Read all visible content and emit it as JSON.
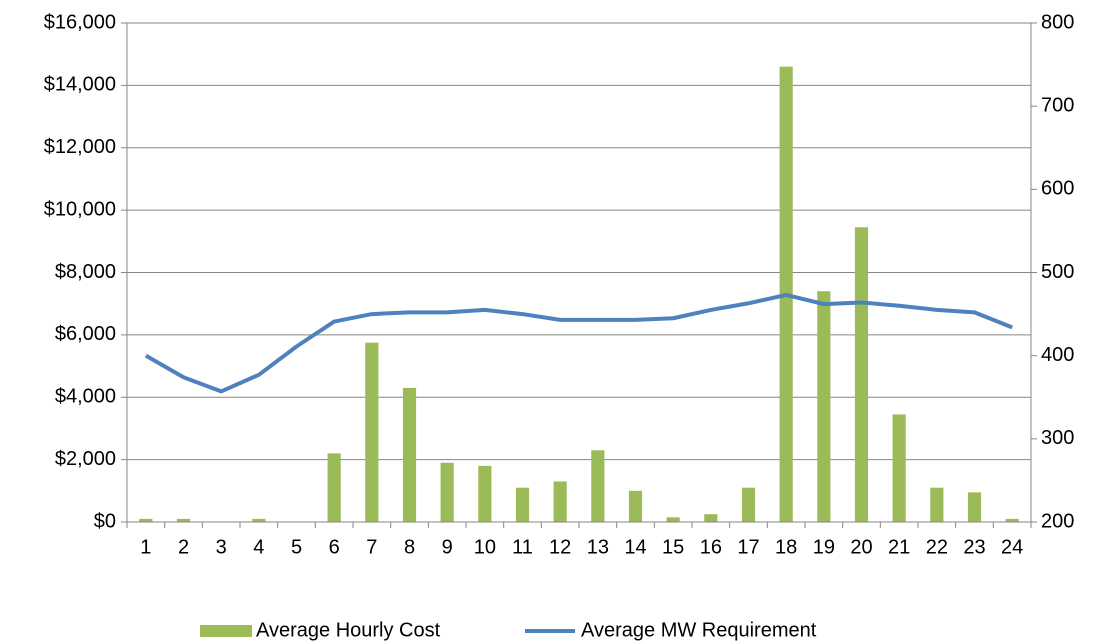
{
  "chart_data": {
    "type": "bar_line",
    "categories": [
      "1",
      "2",
      "3",
      "4",
      "5",
      "6",
      "7",
      "8",
      "9",
      "10",
      "11",
      "12",
      "13",
      "14",
      "15",
      "16",
      "17",
      "18",
      "19",
      "20",
      "21",
      "22",
      "23",
      "24"
    ],
    "series": [
      {
        "name": "Average Hourly Cost",
        "type": "bar",
        "color": "#9bbb59",
        "values": [
          100,
          100,
          0,
          100,
          0,
          2200,
          5750,
          4300,
          1900,
          1800,
          1100,
          1300,
          2300,
          1000,
          150,
          250,
          1100,
          14600,
          7400,
          9450,
          3450,
          1100,
          950,
          100
        ]
      },
      {
        "name": "Average MW Requirement",
        "type": "line",
        "axis": "y2",
        "color": "#4f81bd",
        "values": [
          400,
          374,
          357,
          377,
          411,
          441,
          450,
          452,
          452,
          455,
          450,
          443,
          443,
          443,
          445,
          455,
          463,
          473,
          462,
          464,
          460,
          455,
          452,
          434
        ]
      }
    ],
    "ylim": [
      0,
      16000
    ],
    "yticks": [
      {
        "value": 0,
        "label": "$0"
      },
      {
        "value": 2000,
        "label": "$2,000"
      },
      {
        "value": 4000,
        "label": "$4,000"
      },
      {
        "value": 6000,
        "label": "$6,000"
      },
      {
        "value": 8000,
        "label": "$8,000"
      },
      {
        "value": 10000,
        "label": "$10,000"
      },
      {
        "value": 12000,
        "label": "$12,000"
      },
      {
        "value": 14000,
        "label": "$14,000"
      },
      {
        "value": 16000,
        "label": "$16,000"
      }
    ],
    "y2lim": [
      200,
      800
    ],
    "y2ticks": [
      200,
      300,
      400,
      500,
      600,
      700,
      800
    ],
    "grid": true,
    "legend": "bottom"
  }
}
